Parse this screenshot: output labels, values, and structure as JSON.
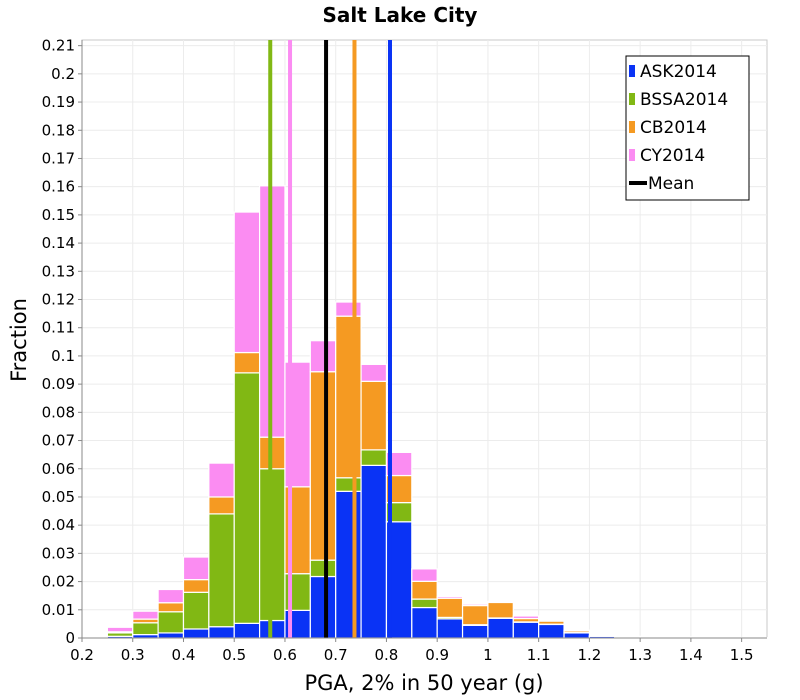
{
  "chart_data": {
    "type": "bar",
    "stacked": true,
    "title": "Salt Lake City",
    "xlabel": "PGA, 2% in 50 year (g)",
    "ylabel": "Fraction",
    "xlim": [
      0.2,
      1.55
    ],
    "ylim": [
      0,
      0.212
    ],
    "bin_width": 0.05,
    "x_ticks": [
      "0.2",
      "0.3",
      "0.4",
      "0.5",
      "0.6",
      "0.7",
      "0.8",
      "0.9",
      "1",
      "1.1",
      "1.2",
      "1.3",
      "1.4",
      "1.5"
    ],
    "y_ticks": [
      "0",
      "0.01",
      "0.02",
      "0.03",
      "0.04",
      "0.05",
      "0.06",
      "0.07",
      "0.08",
      "0.09",
      "0.1",
      "0.11",
      "0.12",
      "0.13",
      "0.14",
      "0.15",
      "0.16",
      "0.17",
      "0.18",
      "0.19",
      "0.2",
      "0.21"
    ],
    "bins": [
      0.225,
      0.275,
      0.325,
      0.375,
      0.425,
      0.475,
      0.525,
      0.575,
      0.625,
      0.675,
      0.725,
      0.775,
      0.825,
      0.875,
      0.925,
      0.975,
      1.025,
      1.075,
      1.125,
      1.175,
      1.225,
      1.275,
      1.325,
      1.375,
      1.425,
      1.475,
      1.525
    ],
    "series": [
      {
        "name": "ASK2014",
        "color": "#0a33f5",
        "values": [
          0.0002,
          0.0006,
          0.0012,
          0.0018,
          0.0032,
          0.004,
          0.0052,
          0.0062,
          0.0098,
          0.0218,
          0.052,
          0.0612,
          0.0412,
          0.0108,
          0.0068,
          0.0045,
          0.007,
          0.0056,
          0.0048,
          0.0018,
          0.0006,
          0.0004,
          0.0003,
          0.0004,
          0.0002,
          0.0002,
          0.0001
        ]
      },
      {
        "name": "BSSA2014",
        "color": "#81b814",
        "values": [
          0.0001,
          0.0012,
          0.0042,
          0.0075,
          0.013,
          0.04,
          0.0888,
          0.0538,
          0.013,
          0.0058,
          0.0048,
          0.0055,
          0.0068,
          0.003,
          0.0005,
          0.0002,
          0.0001,
          0.0001,
          0.0001,
          0.0001,
          0,
          0,
          0,
          0,
          0,
          0,
          0
        ]
      },
      {
        "name": "CB2014",
        "color": "#f59a22",
        "values": [
          0.0001,
          0.0004,
          0.0013,
          0.0032,
          0.0045,
          0.006,
          0.0072,
          0.0112,
          0.0308,
          0.0668,
          0.0573,
          0.0243,
          0.0096,
          0.0063,
          0.0068,
          0.0068,
          0.0055,
          0.0012,
          0.0011,
          0.0006,
          0.0001,
          0.0001,
          0,
          0,
          0,
          0,
          0
        ]
      },
      {
        "name": "CY2014",
        "color": "#fb8cf2",
        "values": [
          0.0002,
          0.0016,
          0.0028,
          0.0047,
          0.008,
          0.012,
          0.0498,
          0.0891,
          0.0442,
          0.011,
          0.005,
          0.006,
          0.0082,
          0.0044,
          0.0006,
          0.0005,
          0.0004,
          0.0009,
          0.0004,
          0.0003,
          0.0001,
          0.0001,
          0.0001,
          0,
          0,
          0,
          0
        ]
      }
    ],
    "mean_lines": [
      {
        "series": "ASK2014",
        "x": 0.807,
        "color": "#0a33f5"
      },
      {
        "series": "BSSA2014",
        "x": 0.571,
        "color": "#81b814"
      },
      {
        "series": "CB2014",
        "x": 0.737,
        "color": "#f59a22"
      },
      {
        "series": "CY2014",
        "x": 0.61,
        "color": "#fb8cf2"
      },
      {
        "series": "Mean",
        "x": 0.681,
        "color": "#000000"
      }
    ],
    "legend": {
      "position": "top-right",
      "entries": [
        {
          "label": "ASK2014",
          "color": "#0a33f5"
        },
        {
          "label": "BSSA2014",
          "color": "#81b814"
        },
        {
          "label": "CB2014",
          "color": "#f59a22"
        },
        {
          "label": "CY2014",
          "color": "#fb8cf2"
        },
        {
          "label": "Mean",
          "color": "#000000"
        }
      ]
    },
    "grid": true
  }
}
